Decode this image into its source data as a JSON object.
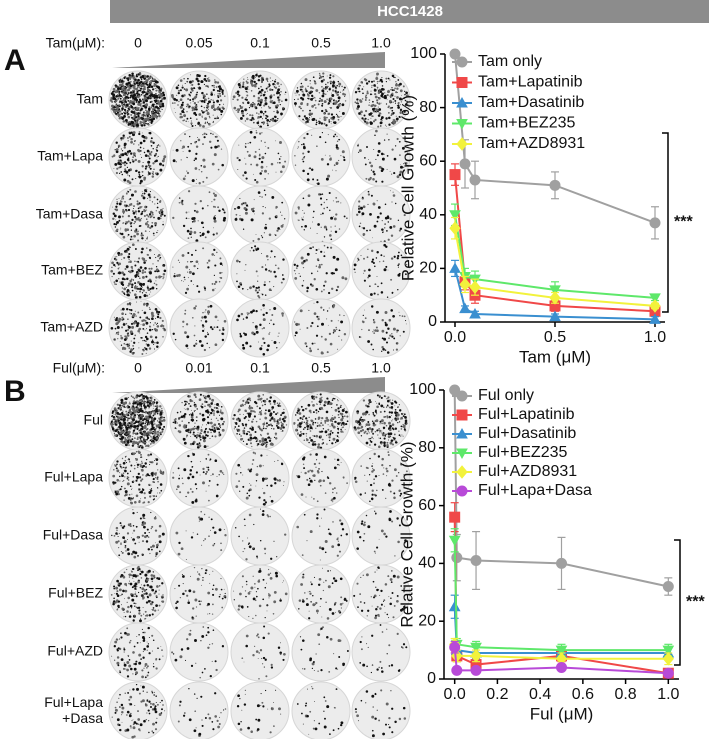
{
  "header": {
    "title": "HCC1428"
  },
  "panels": [
    {
      "label": "A",
      "conc_label": "Tam(μM):",
      "concentrations": [
        "0",
        "0.05",
        "0.1",
        "0.5",
        "1.0"
      ],
      "rows": [
        "Tam",
        "Tam+Lapa",
        "Tam+Dasa",
        "Tam+BEZ",
        "Tam+AZD"
      ]
    },
    {
      "label": "B",
      "conc_label": "Ful(μM):",
      "concentrations": [
        "0",
        "0.01",
        "0.1",
        "0.5",
        "1.0"
      ],
      "rows": [
        "Ful",
        "Ful+Lapa",
        "Ful+Dasa",
        "Ful+BEZ",
        "Ful+AZD",
        [
          "Ful+Lapa",
          "+Dasa"
        ]
      ]
    }
  ],
  "chart_data": [
    {
      "type": "line",
      "xlabel": "Tam (μM)",
      "ylabel": "Relative Cell Growth (%)",
      "annotation": "***",
      "x": [
        0,
        0.05,
        0.1,
        0.5,
        1.0
      ],
      "xlim": [
        -0.05,
        1.05
      ],
      "ylim": [
        0,
        100
      ],
      "xticks": [
        {
          "value": 0,
          "label": "0.0"
        },
        0.5,
        {
          "value": 1,
          "label": "1.0"
        }
      ],
      "yticks": [
        0,
        20,
        40,
        60,
        80,
        100
      ],
      "series": [
        {
          "name": "Tam only",
          "color": "#a0a0a0",
          "marker": "circle",
          "values": [
            100,
            59,
            53,
            51,
            37
          ],
          "errors": [
            0,
            9,
            7,
            5,
            6
          ]
        },
        {
          "name": "Tam+Lapatinib",
          "color": "#f04848",
          "marker": "square",
          "values": [
            55,
            15,
            10,
            6,
            4
          ],
          "errors": [
            4,
            3,
            3,
            2,
            1
          ]
        },
        {
          "name": "Tam+Dasatinib",
          "color": "#3a8fd0",
          "marker": "triangle-up",
          "values": [
            20,
            5,
            3,
            2,
            1
          ],
          "errors": [
            3,
            1,
            1,
            1,
            1
          ]
        },
        {
          "name": "Tam+BEZ235",
          "color": "#5ee86a",
          "marker": "triangle-down",
          "values": [
            40,
            17,
            16,
            12,
            9
          ],
          "errors": [
            4,
            3,
            3,
            3,
            1
          ]
        },
        {
          "name": "Tam+AZD8931",
          "color": "#f2f23c",
          "marker": "diamond",
          "values": [
            35,
            14,
            13,
            9,
            6
          ],
          "errors": [
            4,
            3,
            3,
            2,
            1
          ]
        }
      ]
    },
    {
      "type": "line",
      "xlabel": "Ful (μM)",
      "ylabel": "Relative Cell Growth (%)",
      "annotation": "***",
      "x": [
        0,
        0.01,
        0.1,
        0.5,
        1.0
      ],
      "xlim": [
        -0.05,
        1.05
      ],
      "ylim": [
        0,
        100
      ],
      "xticks": [
        {
          "value": 0,
          "label": "0.0"
        },
        0.2,
        0.4,
        0.6,
        0.8,
        {
          "value": 1,
          "label": "1.0"
        }
      ],
      "yticks": [
        0,
        20,
        40,
        60,
        80,
        100
      ],
      "series": [
        {
          "name": "Ful only",
          "color": "#a0a0a0",
          "marker": "circle",
          "values": [
            100,
            42,
            41,
            40,
            32
          ],
          "errors": [
            0,
            8,
            10,
            9,
            3
          ]
        },
        {
          "name": "Ful+Lapatinib",
          "color": "#f04848",
          "marker": "square",
          "values": [
            56,
            8,
            5,
            8,
            2
          ],
          "errors": [
            5,
            2,
            2,
            2,
            1
          ]
        },
        {
          "name": "Ful+Dasatinib",
          "color": "#3a8fd0",
          "marker": "triangle-up",
          "values": [
            25,
            10,
            9,
            9,
            9
          ],
          "errors": [
            4,
            2,
            2,
            2,
            2
          ]
        },
        {
          "name": "Ful+BEZ235",
          "color": "#5ee86a",
          "marker": "triangle-down",
          "values": [
            48,
            12,
            11,
            10,
            10
          ],
          "errors": [
            4,
            2,
            2,
            2,
            2
          ]
        },
        {
          "name": "Ful+AZD8931",
          "color": "#f2f23c",
          "marker": "diamond",
          "values": [
            12,
            8,
            8,
            7,
            7
          ],
          "errors": [
            2,
            2,
            2,
            2,
            2
          ]
        },
        {
          "name": "Ful+Lapa+Dasa",
          "color": "#b84ad8",
          "marker": "circle",
          "values": [
            11,
            3,
            3,
            4,
            2
          ],
          "errors": [
            2,
            1,
            1,
            1,
            1
          ]
        }
      ]
    }
  ]
}
